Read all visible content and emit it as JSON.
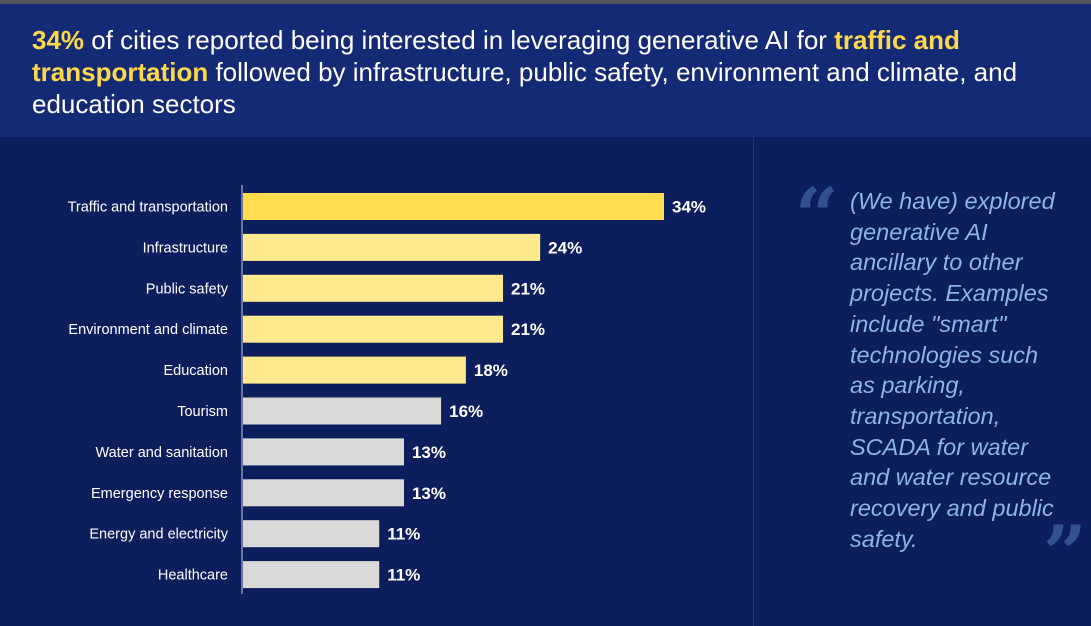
{
  "headline": {
    "part1_highlight": "34%",
    "part2": " of cities reported being interested in leveraging generative AI for ",
    "part3_highlight": "traffic and transportation",
    "part4": " followed by infrastructure, public safety, environment and climate, and education sectors"
  },
  "quote": {
    "text": "(We have) explored generative AI ancillary to other projects. Examples include \"smart\" technologies such as parking, transportation, SCADA for water and water resource recovery and public safety.",
    "open_mark": "“",
    "close_mark": "”"
  },
  "colors": {
    "top_bar": "#ffdd4f",
    "highlight_bar": "#ffe98f",
    "other_bar": "#d9d9d9",
    "label_text": "#ffffff",
    "axis": "#8a94b8"
  },
  "chart_data": {
    "type": "bar",
    "orientation": "horizontal",
    "categories": [
      "Traffic and transportation",
      "Infrastructure",
      "Public safety",
      "Environment and climate",
      "Education",
      "Tourism",
      "Water and sanitation",
      "Emergency response",
      "Energy and electricity",
      "Healthcare"
    ],
    "values": [
      34,
      24,
      21,
      21,
      18,
      16,
      13,
      13,
      11,
      11
    ],
    "value_labels": [
      "34%",
      "24%",
      "21%",
      "21%",
      "18%",
      "16%",
      "13%",
      "13%",
      "11%",
      "11%"
    ],
    "highlight_levels": [
      "top",
      "highlight",
      "highlight",
      "highlight",
      "highlight",
      "other",
      "other",
      "other",
      "other",
      "other"
    ],
    "xlim": [
      0,
      34
    ],
    "unit": "%",
    "title": "",
    "xlabel": "",
    "ylabel": "",
    "grid": false
  }
}
